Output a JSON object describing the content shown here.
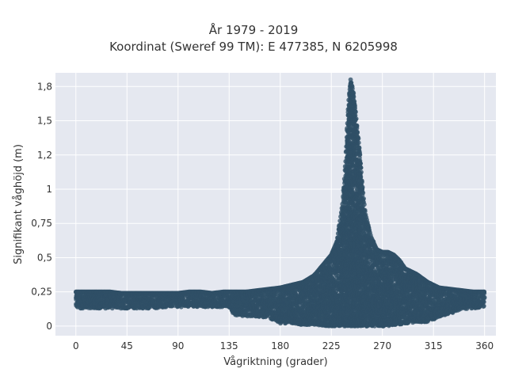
{
  "chart_data": {
    "type": "scatter",
    "title": "År 1979 - 2019",
    "subtitle": "Koordinat (Sweref 99 TM): E 477385, N 6205998",
    "xlabel": "Vågriktning (grader)",
    "ylabel": "Signifikant våghöjd (m)",
    "xlim": [
      -18,
      370
    ],
    "ylim": [
      -0.07,
      1.85
    ],
    "x_ticks": [
      0,
      45,
      90,
      135,
      180,
      225,
      270,
      315,
      360
    ],
    "x_tick_labels": [
      "0",
      "45",
      "90",
      "135",
      "180",
      "225",
      "270",
      "315",
      "360"
    ],
    "y_ticks": [
      0,
      0.25,
      0.5,
      0.75,
      1.0,
      1.25,
      1.5,
      1.75
    ],
    "y_tick_labels": [
      "0",
      "0,25",
      "0,5",
      "0,75",
      "1",
      "1,2",
      "1,5",
      "1,8"
    ],
    "grid": true,
    "marker_color": "#2f5066",
    "background_color": "#e5e8f0",
    "x_values": [
      0,
      10,
      20,
      30,
      40,
      45,
      50,
      60,
      70,
      80,
      90,
      100,
      110,
      120,
      130,
      135,
      140,
      150,
      160,
      170,
      180,
      190,
      200,
      210,
      220,
      225,
      230,
      235,
      238,
      240,
      242,
      244,
      246,
      248,
      250,
      252,
      255,
      260,
      265,
      270,
      275,
      280,
      285,
      290,
      300,
      310,
      315,
      320,
      330,
      340,
      350,
      360
    ],
    "y_max": [
      0.25,
      0.25,
      0.25,
      0.25,
      0.24,
      0.24,
      0.24,
      0.24,
      0.24,
      0.24,
      0.24,
      0.25,
      0.25,
      0.24,
      0.25,
      0.25,
      0.25,
      0.25,
      0.26,
      0.27,
      0.28,
      0.3,
      0.32,
      0.37,
      0.47,
      0.52,
      0.62,
      0.9,
      1.25,
      1.62,
      1.8,
      1.72,
      1.6,
      1.42,
      1.28,
      1.05,
      0.82,
      0.65,
      0.56,
      0.54,
      0.54,
      0.52,
      0.48,
      0.42,
      0.38,
      0.32,
      0.3,
      0.28,
      0.27,
      0.26,
      0.25,
      0.25
    ],
    "y_min": [
      0.13,
      0.13,
      0.13,
      0.13,
      0.13,
      0.13,
      0.13,
      0.13,
      0.13,
      0.14,
      0.14,
      0.14,
      0.14,
      0.14,
      0.14,
      0.14,
      0.08,
      0.07,
      0.07,
      0.06,
      0.02,
      0.02,
      0.01,
      0.01,
      0.0,
      0.0,
      0.0,
      0.0,
      0.0,
      0.0,
      0.0,
      0.0,
      0.0,
      0.0,
      0.0,
      0.0,
      0.0,
      0.0,
      0.0,
      0.0,
      0.0,
      0.01,
      0.01,
      0.02,
      0.03,
      0.03,
      0.05,
      0.07,
      0.09,
      0.12,
      0.13,
      0.14
    ]
  }
}
